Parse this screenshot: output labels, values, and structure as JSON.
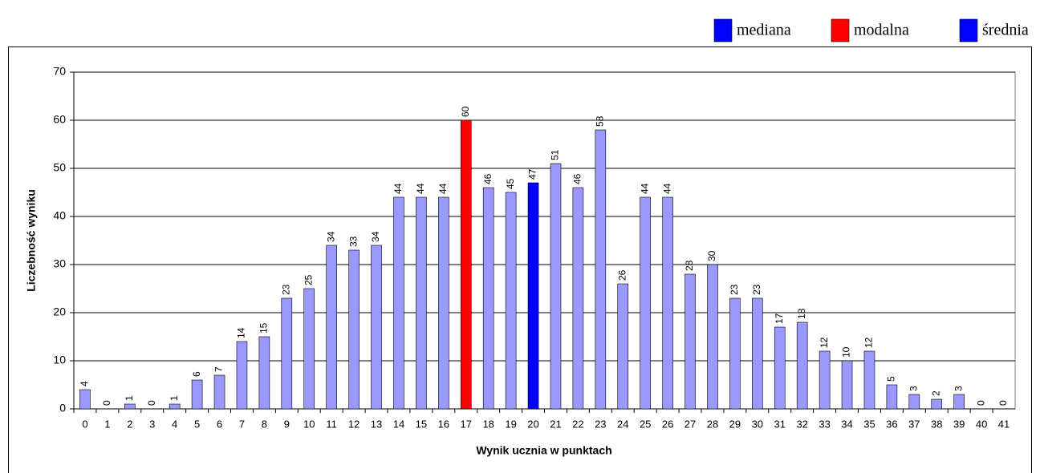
{
  "chart_data": {
    "type": "bar",
    "xlabel": "Wynik ucznia w punktach",
    "ylabel": "Liczebność wyniku",
    "categories": [
      "0",
      "1",
      "2",
      "3",
      "4",
      "5",
      "6",
      "7",
      "8",
      "9",
      "10",
      "11",
      "12",
      "13",
      "14",
      "15",
      "16",
      "17",
      "18",
      "19",
      "20",
      "21",
      "22",
      "23",
      "24",
      "25",
      "26",
      "27",
      "28",
      "29",
      "30",
      "31",
      "32",
      "33",
      "34",
      "35",
      "36",
      "37",
      "38",
      "39",
      "40",
      "41"
    ],
    "values": [
      4,
      0,
      1,
      0,
      1,
      6,
      7,
      14,
      15,
      23,
      25,
      34,
      33,
      34,
      44,
      44,
      44,
      60,
      46,
      45,
      47,
      51,
      46,
      58,
      26,
      44,
      44,
      28,
      30,
      23,
      23,
      17,
      18,
      12,
      10,
      12,
      5,
      3,
      2,
      3,
      0,
      0
    ],
    "colors": [
      "#9999ff",
      "#9999ff",
      "#9999ff",
      "#9999ff",
      "#9999ff",
      "#9999ff",
      "#9999ff",
      "#9999ff",
      "#9999ff",
      "#9999ff",
      "#9999ff",
      "#9999ff",
      "#9999ff",
      "#9999ff",
      "#9999ff",
      "#9999ff",
      "#9999ff",
      "#ff0000",
      "#9999ff",
      "#9999ff",
      "#0000ff",
      "#9999ff",
      "#9999ff",
      "#9999ff",
      "#9999ff",
      "#9999ff",
      "#9999ff",
      "#9999ff",
      "#9999ff",
      "#9999ff",
      "#9999ff",
      "#9999ff",
      "#9999ff",
      "#9999ff",
      "#9999ff",
      "#9999ff",
      "#9999ff",
      "#9999ff",
      "#9999ff",
      "#9999ff",
      "#9999ff",
      "#9999ff"
    ],
    "legend": [
      {
        "name": "mediana",
        "color": "#0000ff"
      },
      {
        "name": "modalna",
        "color": "#ff0000"
      },
      {
        "name": "średnia",
        "color": "#0000ff"
      }
    ],
    "ylim": [
      0,
      70
    ],
    "yticks": [
      0,
      10,
      20,
      30,
      40,
      50,
      60,
      70
    ],
    "grid": true
  }
}
